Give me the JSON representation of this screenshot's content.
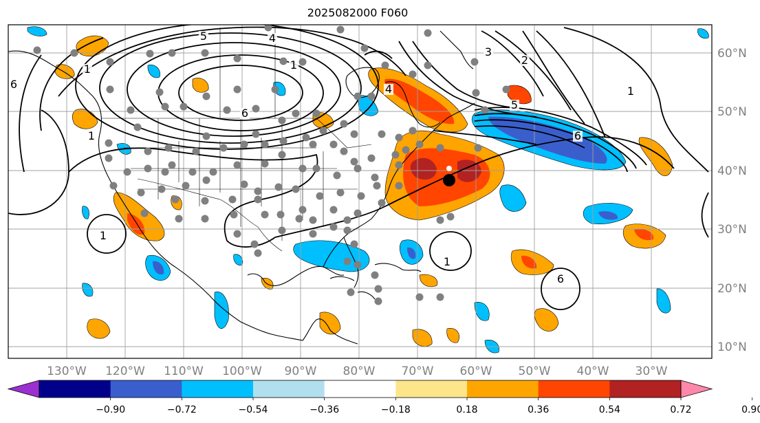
{
  "title": "2025082000 F060",
  "map": {
    "lon_labels": [
      "130°W",
      "120°W",
      "110°W",
      "100°W",
      "90°W",
      "80°W",
      "70°W",
      "60°W",
      "50°W",
      "40°W",
      "30°W"
    ],
    "lat_labels": [
      "60°N",
      "50°N",
      "40°N",
      "30°N",
      "20°N",
      "10°N"
    ],
    "contour_labels": [
      "4",
      "5",
      "6",
      "1",
      "1",
      "2",
      "3",
      "4",
      "5",
      "6",
      "1",
      "6",
      "1",
      "1",
      "1",
      "6"
    ]
  },
  "colorbar": {
    "tick_labels": [
      "−0.90",
      "−0.72",
      "−0.54",
      "−0.36",
      "−0.18",
      "0.18",
      "0.36",
      "0.54",
      "0.72",
      "0.90"
    ],
    "colors": [
      "#9b30d0",
      "#00008b",
      "#3a5fcd",
      "#00bfff",
      "#b2dfee",
      "#ffffff",
      "#fde68a",
      "#ffa500",
      "#ff4500",
      "#b22222",
      "#ff88aa"
    ]
  },
  "palette": {
    "orange": "#ffa500",
    "red": "#ff4500",
    "darkred": "#b22222",
    "cyan": "#00bfff",
    "blue": "#3a5fcd",
    "station": "#808080"
  }
}
